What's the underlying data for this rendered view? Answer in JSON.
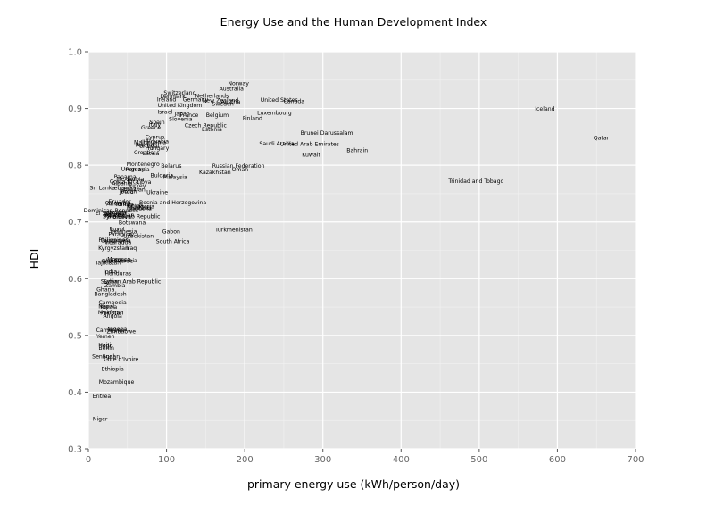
{
  "chart_data": {
    "type": "scatter",
    "title": "Energy Use and the Human Development Index",
    "xlabel": "primary energy use (kWh/person/day)",
    "ylabel": "HDI",
    "xlim": [
      0,
      700
    ],
    "ylim": [
      0.3,
      1.0
    ],
    "xticks": [
      "0",
      "100",
      "200",
      "300",
      "400",
      "500",
      "600",
      "700"
    ],
    "yticks": [
      "0.3",
      "0.4",
      "0.5",
      "0.6",
      "0.7",
      "0.8",
      "0.9",
      "1.0"
    ],
    "grid": true,
    "marks": "text labels",
    "points": [
      {
        "label": "Norway",
        "x": 192,
        "y": 0.944
      },
      {
        "label": "Australia",
        "x": 183,
        "y": 0.935
      },
      {
        "label": "Switzerland",
        "x": 117,
        "y": 0.928
      },
      {
        "label": "Netherlands",
        "x": 158,
        "y": 0.922
      },
      {
        "label": "Denmark",
        "x": 108,
        "y": 0.921
      },
      {
        "label": "Ireland",
        "x": 100,
        "y": 0.916
      },
      {
        "label": "Germany",
        "x": 137,
        "y": 0.916
      },
      {
        "label": "New Zealand",
        "x": 169,
        "y": 0.914
      },
      {
        "label": "Austria",
        "x": 182,
        "y": 0.912
      },
      {
        "label": "United States",
        "x": 244,
        "y": 0.915
      },
      {
        "label": "Canada",
        "x": 263,
        "y": 0.913
      },
      {
        "label": "Sweden",
        "x": 172,
        "y": 0.908
      },
      {
        "label": "United Kingdom",
        "x": 117,
        "y": 0.906
      },
      {
        "label": "Luxembourg",
        "x": 238,
        "y": 0.892
      },
      {
        "label": "Iceland",
        "x": 584,
        "y": 0.899
      },
      {
        "label": "Israel",
        "x": 98,
        "y": 0.894
      },
      {
        "label": "Japan",
        "x": 120,
        "y": 0.891
      },
      {
        "label": "France",
        "x": 129,
        "y": 0.888
      },
      {
        "label": "Belgium",
        "x": 165,
        "y": 0.888
      },
      {
        "label": "Finland",
        "x": 210,
        "y": 0.883
      },
      {
        "label": "Slovenia",
        "x": 118,
        "y": 0.881
      },
      {
        "label": "Spain",
        "x": 88,
        "y": 0.876
      },
      {
        "label": "Italy",
        "x": 85,
        "y": 0.872
      },
      {
        "label": "Czech Republic",
        "x": 150,
        "y": 0.87
      },
      {
        "label": "Greece",
        "x": 80,
        "y": 0.866
      },
      {
        "label": "Estonia",
        "x": 158,
        "y": 0.863
      },
      {
        "label": "Brunei Darussalam",
        "x": 305,
        "y": 0.857
      },
      {
        "label": "Cyprus",
        "x": 85,
        "y": 0.85
      },
      {
        "label": "Qatar",
        "x": 656,
        "y": 0.848
      },
      {
        "label": "Slovakia",
        "x": 88,
        "y": 0.842
      },
      {
        "label": "Malta",
        "x": 68,
        "y": 0.84
      },
      {
        "label": "Lithuania",
        "x": 83,
        "y": 0.84
      },
      {
        "label": "Poland",
        "x": 72,
        "y": 0.836
      },
      {
        "label": "Portugal",
        "x": 76,
        "y": 0.833
      },
      {
        "label": "Hungary",
        "x": 88,
        "y": 0.83
      },
      {
        "label": "Saudi Arabia",
        "x": 241,
        "y": 0.838
      },
      {
        "label": "United Arab Emirates",
        "x": 283,
        "y": 0.837
      },
      {
        "label": "Bahrain",
        "x": 344,
        "y": 0.826
      },
      {
        "label": "Kuwait",
        "x": 285,
        "y": 0.818
      },
      {
        "label": "Croatia",
        "x": 71,
        "y": 0.822
      },
      {
        "label": "Latvia",
        "x": 80,
        "y": 0.821
      },
      {
        "label": "Montenegro",
        "x": 70,
        "y": 0.802
      },
      {
        "label": "Belarus",
        "x": 106,
        "y": 0.799
      },
      {
        "label": "Russian Federation",
        "x": 192,
        "y": 0.799
      },
      {
        "label": "Uruguay",
        "x": 57,
        "y": 0.793
      },
      {
        "label": "Romania",
        "x": 63,
        "y": 0.792
      },
      {
        "label": "Oman",
        "x": 194,
        "y": 0.792
      },
      {
        "label": "Kazakhstan",
        "x": 162,
        "y": 0.788
      },
      {
        "label": "Bulgaria",
        "x": 94,
        "y": 0.782
      },
      {
        "label": "Malaysia",
        "x": 111,
        "y": 0.779
      },
      {
        "label": "Panama",
        "x": 47,
        "y": 0.78
      },
      {
        "label": "Mexico",
        "x": 48,
        "y": 0.776
      },
      {
        "label": "Serbia",
        "x": 60,
        "y": 0.775
      },
      {
        "label": "Trinidad and Tobago",
        "x": 496,
        "y": 0.772
      },
      {
        "label": "Costa Rica",
        "x": 46,
        "y": 0.771
      },
      {
        "label": "Libya",
        "x": 71,
        "y": 0.77
      },
      {
        "label": "Albania",
        "x": 43,
        "y": 0.768
      },
      {
        "label": "Turkey",
        "x": 62,
        "y": 0.764
      },
      {
        "label": "Sri Lanka",
        "x": 18,
        "y": 0.76
      },
      {
        "label": "Lebanon",
        "x": 44,
        "y": 0.76
      },
      {
        "label": "Brazil",
        "x": 55,
        "y": 0.758
      },
      {
        "label": "Iran",
        "x": 66,
        "y": 0.757
      },
      {
        "label": "Jordan",
        "x": 51,
        "y": 0.754
      },
      {
        "label": "Peru",
        "x": 50,
        "y": 0.753
      },
      {
        "label": "Ukraine",
        "x": 88,
        "y": 0.752
      },
      {
        "label": "Ecuador",
        "x": 40,
        "y": 0.736
      },
      {
        "label": "Colombia",
        "x": 38,
        "y": 0.733
      },
      {
        "label": "Armenia",
        "x": 38,
        "y": 0.732
      },
      {
        "label": "Tunisia",
        "x": 46,
        "y": 0.731
      },
      {
        "label": "Bosnia and Herzegovina",
        "x": 108,
        "y": 0.734
      },
      {
        "label": "China",
        "x": 60,
        "y": 0.729
      },
      {
        "label": "Algeria",
        "x": 72,
        "y": 0.727
      },
      {
        "label": "Thailand",
        "x": 65,
        "y": 0.725
      },
      {
        "label": "Mongolia",
        "x": 65,
        "y": 0.724
      },
      {
        "label": "Dominican Republic",
        "x": 29,
        "y": 0.72
      },
      {
        "label": "El Salvador",
        "x": 29,
        "y": 0.715
      },
      {
        "label": "Jamaica",
        "x": 35,
        "y": 0.716
      },
      {
        "label": "Belize",
        "x": 31,
        "y": 0.713
      },
      {
        "label": "Azerbaijan",
        "x": 40,
        "y": 0.712
      },
      {
        "label": "Moldova",
        "x": 40,
        "y": 0.709
      },
      {
        "label": "Syrian Arab Republic",
        "x": 55,
        "y": 0.71
      },
      {
        "label": "Botswana",
        "x": 56,
        "y": 0.699
      },
      {
        "label": "Gabon",
        "x": 106,
        "y": 0.683
      },
      {
        "label": "Turkmenistan",
        "x": 186,
        "y": 0.686
      },
      {
        "label": "Egypt",
        "x": 37,
        "y": 0.688
      },
      {
        "label": "Indonesia",
        "x": 45,
        "y": 0.683
      },
      {
        "label": "Paraguay",
        "x": 42,
        "y": 0.678
      },
      {
        "label": "Uzbekistan",
        "x": 64,
        "y": 0.675
      },
      {
        "label": "Philippines",
        "x": 32,
        "y": 0.668
      },
      {
        "label": "Guatemala",
        "x": 35,
        "y": 0.667
      },
      {
        "label": "South Africa",
        "x": 108,
        "y": 0.666
      },
      {
        "label": "Nicaragua",
        "x": 37,
        "y": 0.664
      },
      {
        "label": "Kyrgyzstan",
        "x": 32,
        "y": 0.654
      },
      {
        "label": "Iraq",
        "x": 55,
        "y": 0.654
      },
      {
        "label": "Morocco",
        "x": 39,
        "y": 0.634
      },
      {
        "label": "Vanuatu",
        "x": 34,
        "y": 0.632
      },
      {
        "label": "Cape Verde",
        "x": 37,
        "y": 0.631
      },
      {
        "label": "Tajikistan",
        "x": 25,
        "y": 0.628
      },
      {
        "label": "Namibia",
        "x": 48,
        "y": 0.632
      },
      {
        "label": "India",
        "x": 28,
        "y": 0.612
      },
      {
        "label": "Honduras",
        "x": 38,
        "y": 0.609
      },
      {
        "label": "Sudan",
        "x": 27,
        "y": 0.595
      },
      {
        "label": "Syrian Arab Republic",
        "x": 56,
        "y": 0.595
      },
      {
        "label": "Zambia",
        "x": 34,
        "y": 0.588
      },
      {
        "label": "Ghana",
        "x": 22,
        "y": 0.581
      },
      {
        "label": "Bangladesh",
        "x": 28,
        "y": 0.573
      },
      {
        "label": "Cambodia",
        "x": 31,
        "y": 0.558
      },
      {
        "label": "Nepal",
        "x": 23,
        "y": 0.551
      },
      {
        "label": "Kenya",
        "x": 26,
        "y": 0.55
      },
      {
        "label": "Myanmar",
        "x": 29,
        "y": 0.541
      },
      {
        "label": "Pakistan",
        "x": 30,
        "y": 0.54
      },
      {
        "label": "Angola",
        "x": 31,
        "y": 0.534
      },
      {
        "label": "Cameroon",
        "x": 28,
        "y": 0.509
      },
      {
        "label": "Nigeria",
        "x": 37,
        "y": 0.511
      },
      {
        "label": "Zimbabwe",
        "x": 42,
        "y": 0.507
      },
      {
        "label": "Yemen",
        "x": 22,
        "y": 0.498
      },
      {
        "label": "Haiti",
        "x": 21,
        "y": 0.483
      },
      {
        "label": "Togo",
        "x": 23,
        "y": 0.482
      },
      {
        "label": "Benin",
        "x": 23,
        "y": 0.478
      },
      {
        "label": "Senegal",
        "x": 19,
        "y": 0.463
      },
      {
        "label": "Sudan",
        "x": 29,
        "y": 0.463
      },
      {
        "label": "Côte d'Ivoire",
        "x": 42,
        "y": 0.458
      },
      {
        "label": "Ethiopia",
        "x": 31,
        "y": 0.441
      },
      {
        "label": "Mozambique",
        "x": 36,
        "y": 0.418
      },
      {
        "label": "Eritrea",
        "x": 17,
        "y": 0.393
      },
      {
        "label": "Niger",
        "x": 15,
        "y": 0.353
      }
    ]
  }
}
